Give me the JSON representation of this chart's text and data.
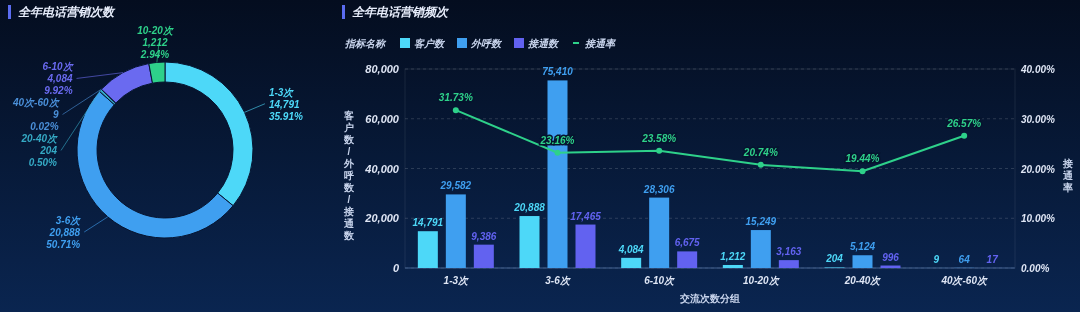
{
  "chart_data": [
    {
      "type": "donut",
      "title": "全年电话营销次数",
      "categories": [
        "1-3次",
        "3-6次",
        "20-40次",
        "40次-60次",
        "6-10次",
        "10-20次"
      ],
      "values": [
        14791,
        20888,
        204,
        9,
        4084,
        1212
      ],
      "colors": [
        "#4dd8f8",
        "#3f9ff0",
        "#35a9c4",
        "#4a8fd8",
        "#6a6af0",
        "#2ed18a"
      ],
      "value_labels": [
        "14,791",
        "20,888",
        "204",
        "9",
        "4,084",
        "1,212"
      ],
      "annotations": [
        "35.91%",
        "50.71%",
        "0.50%",
        "0.02%",
        "9.92%",
        "2.94%"
      ]
    },
    {
      "type": "bar",
      "title": "全年电话营销频次",
      "legend_title": "指标名称",
      "xlabel": "交流次数分组",
      "ylabel": "客户数/外呼数/接通数",
      "y2label": "接通率",
      "categories": [
        "1-3次",
        "3-6次",
        "6-10次",
        "10-20次",
        "20-40次",
        "40次-60次"
      ],
      "series": [
        {
          "name": "客户数",
          "color": "#4dd8f8",
          "values": [
            14791,
            20888,
            4084,
            1212,
            204,
            9
          ],
          "value_labels": [
            "14,791",
            "20,888",
            "4,084",
            "1,212",
            "204",
            "9"
          ]
        },
        {
          "name": "外呼数",
          "color": "#3f9ff0",
          "values": [
            29582,
            75410,
            28306,
            15249,
            5124,
            64
          ],
          "value_labels": [
            "29,582",
            "75,410",
            "28,306",
            "15,249",
            "5,124",
            "64"
          ]
        },
        {
          "name": "接通数",
          "color": "#6262f0",
          "values": [
            9386,
            17465,
            6675,
            3163,
            996,
            17
          ],
          "value_labels": [
            "9,386",
            "17,465",
            "6,675",
            "3,163",
            "996",
            "17"
          ]
        },
        {
          "name": "接通率",
          "type": "line",
          "axis": "y2",
          "color": "#2ed18a",
          "values": [
            31.73,
            23.16,
            23.58,
            20.74,
            19.44,
            26.57
          ],
          "value_labels": [
            "31.73%",
            "23.16%",
            "23.58%",
            "20.74%",
            "19.44%",
            "26.57%"
          ]
        }
      ],
      "ylim": [
        0,
        80000
      ],
      "yticks": [
        {
          "value": 0,
          "label": "0"
        },
        {
          "value": 20000,
          "label": "20,000"
        },
        {
          "value": 40000,
          "label": "40,000"
        },
        {
          "value": 60000,
          "label": "60,000"
        },
        {
          "value": 80000,
          "label": "80,000"
        }
      ],
      "y2lim": [
        0,
        40
      ],
      "y2ticks": [
        {
          "value": 0,
          "label": "0.00%"
        },
        {
          "value": 10,
          "label": "10.00%"
        },
        {
          "value": 20,
          "label": "20.00%"
        },
        {
          "value": 30,
          "label": "30.00%"
        },
        {
          "value": 40,
          "label": "40.00%"
        }
      ],
      "grid": "y",
      "legend": "top left",
      "marker": "circle"
    }
  ]
}
